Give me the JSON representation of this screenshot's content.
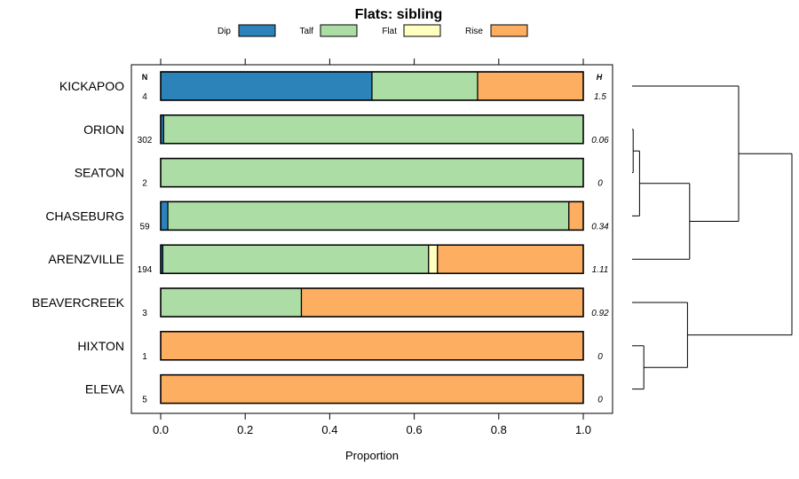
{
  "chart_data": {
    "type": "bar",
    "orientation": "horizontal",
    "stacked": true,
    "title": "Flats: sibling",
    "xlabel": "Proportion",
    "xlim": [
      0,
      1
    ],
    "xticks": [
      "0.0",
      "0.2",
      "0.4",
      "0.6",
      "0.8",
      "1.0"
    ],
    "n_header": "N",
    "h_header": "H",
    "categories": [
      "KICKAPOO",
      "ORION",
      "SEATON",
      "CHASEBURG",
      "ARENZVILLE",
      "BEAVERCREEK",
      "HIXTON",
      "ELEVA"
    ],
    "n": [
      "4",
      "302",
      "2",
      "59",
      "194",
      "3",
      "1",
      "5"
    ],
    "h": [
      "1.5",
      "0.06",
      "0",
      "0.34",
      "1.11",
      "0.92",
      "0",
      "0"
    ],
    "series": [
      {
        "name": "Dip",
        "color": "#2b83ba",
        "values": [
          0.5,
          0.007,
          0.0,
          0.017,
          0.005,
          0.0,
          0.0,
          0.0
        ]
      },
      {
        "name": "Talf",
        "color": "#abdda4",
        "values": [
          0.25,
          0.993,
          1.0,
          0.949,
          0.629,
          0.333,
          0.0,
          0.0
        ]
      },
      {
        "name": "Flat",
        "color": "#ffffbf",
        "values": [
          0.0,
          0.0,
          0.0,
          0.0,
          0.021,
          0.0,
          0.0,
          0.0
        ]
      },
      {
        "name": "Rise",
        "color": "#fdae61",
        "values": [
          0.25,
          0.0,
          0.0,
          0.034,
          0.345,
          0.667,
          1.0,
          1.0
        ]
      }
    ],
    "dendrogram": {
      "leaves": [
        "KICKAPOO",
        "ORION",
        "SEATON",
        "CHASEBURG",
        "ARENZVILLE",
        "BEAVERCREEK",
        "HIXTON",
        "ELEVA"
      ],
      "merges": [
        [
          1,
          2,
          0.01
        ],
        [
          8,
          3,
          0.07
        ],
        [
          9,
          4,
          0.54
        ],
        [
          10,
          0,
          1.0
        ],
        [
          6,
          7,
          0.11
        ],
        [
          5,
          12,
          0.52
        ],
        [
          11,
          13,
          1.5
        ]
      ]
    }
  }
}
